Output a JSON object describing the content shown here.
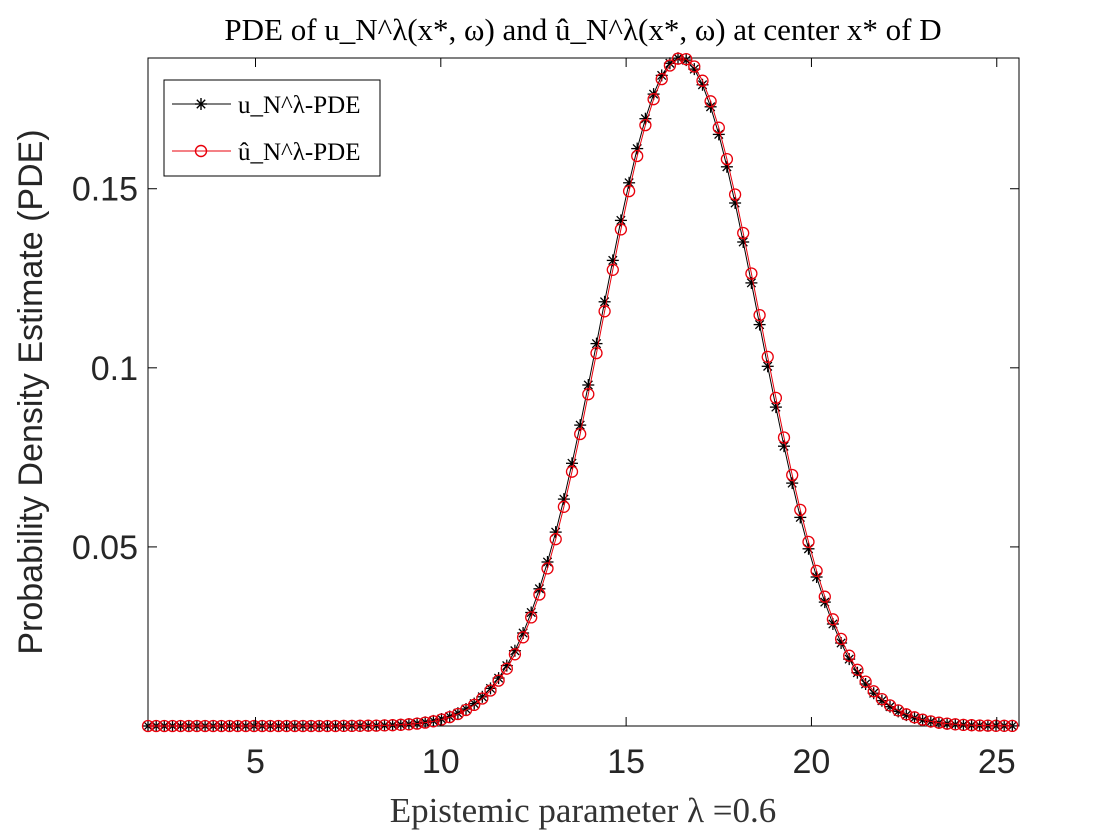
{
  "chart_data": {
    "type": "line",
    "title": "PDE of u_N^λ(x*, ω) and û_N^λ(x*, ω) at center x* of D",
    "xlabel": "Epistemic parameter λ =0.6",
    "ylabel": "Probability Density Estimate (PDE)",
    "xlim": [
      2.1,
      25.6
    ],
    "ylim": [
      0,
      0.1865
    ],
    "xticks": [
      5,
      10,
      15,
      20,
      25
    ],
    "xtick_labels": [
      "5",
      "10",
      "15",
      "20",
      "25"
    ],
    "yticks": [
      0.05,
      0.1,
      0.15
    ],
    "ytick_labels": [
      "0.05",
      "0.1",
      "0.15"
    ],
    "grid": false,
    "legend_position": "top-left",
    "x_range": [
      2.1,
      25.6
    ],
    "x_step": 0.22,
    "series": [
      {
        "name": "u_N^λ-PDE",
        "color": "#000000",
        "marker": "asterisk",
        "mean": 16.45,
        "std": 2.13,
        "peak": 0.1865
      },
      {
        "name": "û_N^λ-PDE",
        "color": "#e8000b",
        "marker": "circle",
        "mean": 16.5,
        "std": 2.13,
        "peak": 0.1865
      }
    ]
  }
}
